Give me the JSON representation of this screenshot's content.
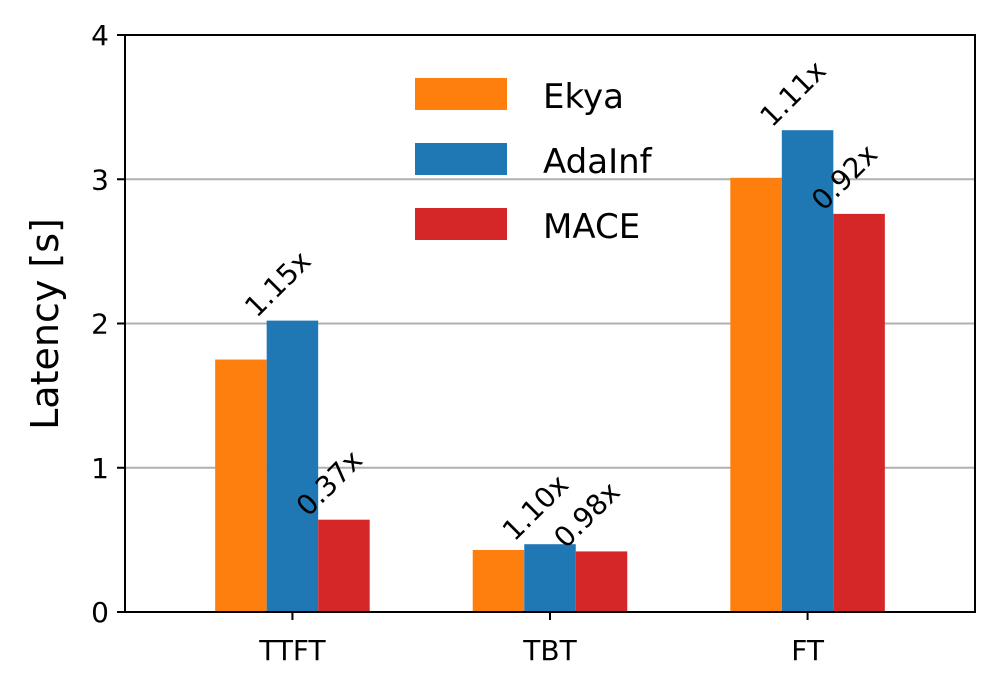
{
  "chart_data": {
    "type": "bar",
    "categories": [
      "TTFT",
      "TBT",
      "FT"
    ],
    "series": [
      {
        "name": "Ekya",
        "color": "#ff7f0e",
        "values": [
          1.75,
          0.43,
          3.01
        ]
      },
      {
        "name": "AdaInf",
        "color": "#1f77b4",
        "values": [
          2.02,
          0.47,
          3.34
        ]
      },
      {
        "name": "MACE",
        "color": "#d62728",
        "values": [
          0.64,
          0.42,
          2.76
        ]
      }
    ],
    "annotations": [
      {
        "category_index": 0,
        "series_index": 1,
        "text": "1.15x"
      },
      {
        "category_index": 0,
        "series_index": 2,
        "text": "0.37x"
      },
      {
        "category_index": 1,
        "series_index": 1,
        "text": "1.10x"
      },
      {
        "category_index": 1,
        "series_index": 2,
        "text": "0.98x"
      },
      {
        "category_index": 2,
        "series_index": 1,
        "text": "1.11x"
      },
      {
        "category_index": 2,
        "series_index": 2,
        "text": "0.92x"
      }
    ],
    "title": "",
    "xlabel": "",
    "ylabel": "Latency [s]",
    "ylim": [
      0,
      4
    ],
    "yticks": [
      "0",
      "1",
      "2",
      "3",
      "4"
    ],
    "grid": "y",
    "legend_position": "upper-center"
  }
}
